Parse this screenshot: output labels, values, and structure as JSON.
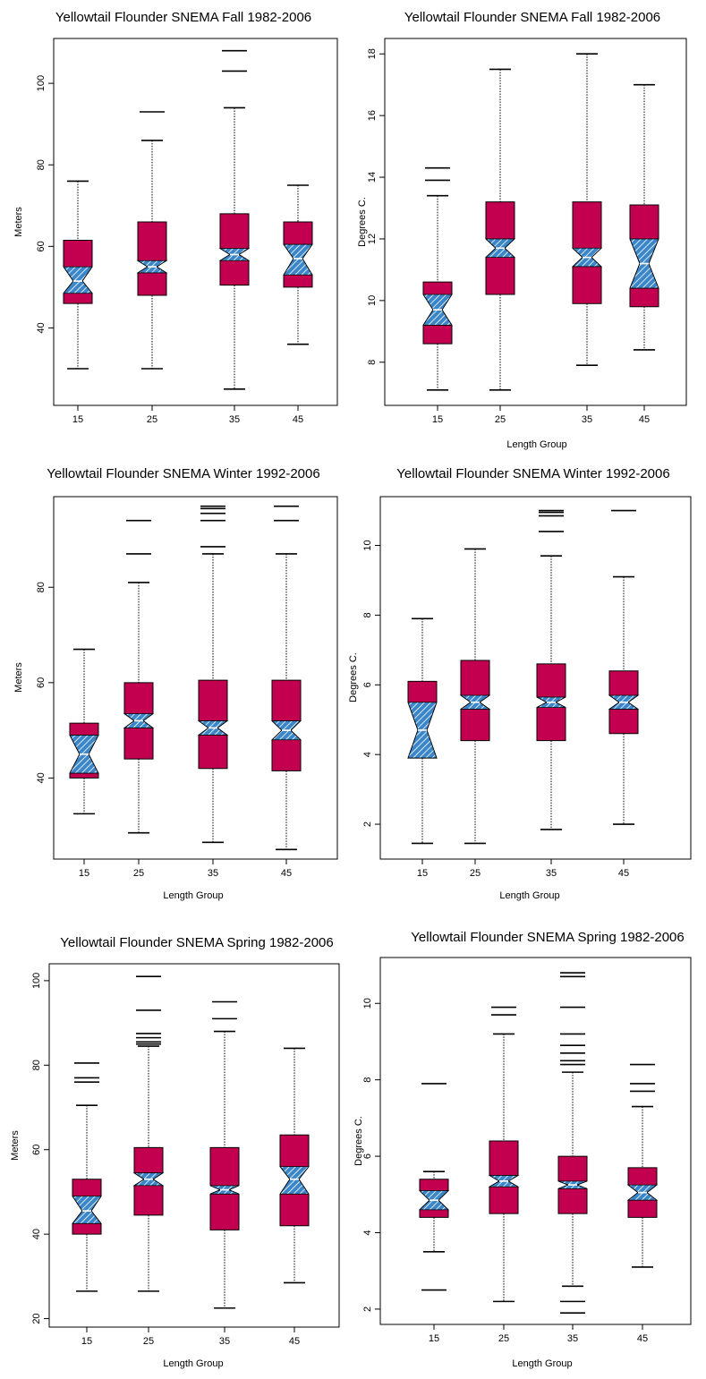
{
  "colors": {
    "box": "#c2004f",
    "notch": "#3a86c8",
    "hatch": "#ffffff",
    "stroke": "#000000"
  },
  "chart_data": [
    {
      "type": "box",
      "title": "Yellowtail Flounder SNEMA Fall 1982-2006",
      "xlabel": "",
      "ylabel": "Meters",
      "categories": [
        "15",
        "25",
        "35",
        "45"
      ],
      "yticks": [
        40,
        60,
        80,
        100
      ],
      "ylim": [
        21,
        111
      ],
      "boxes": [
        {
          "whisker_low": 30,
          "q1": 46,
          "notch_low": 48.5,
          "median": 51.5,
          "notch_high": 55,
          "q3": 61.5,
          "whisker_high": 76,
          "outliers": []
        },
        {
          "whisker_low": 30,
          "q1": 48,
          "notch_low": 53.5,
          "median": 55,
          "notch_high": 56.5,
          "q3": 66,
          "whisker_high": 86,
          "outliers": [
            93
          ]
        },
        {
          "whisker_low": 25,
          "q1": 50.5,
          "notch_low": 56.5,
          "median": 58,
          "notch_high": 59.5,
          "q3": 68,
          "whisker_high": 94,
          "outliers": [
            103,
            108
          ]
        },
        {
          "whisker_low": 36,
          "q1": 50,
          "notch_low": 53,
          "median": 57,
          "notch_high": 60.5,
          "q3": 66,
          "whisker_high": 75,
          "outliers": []
        }
      ]
    },
    {
      "type": "box",
      "title": "Yellowtail Flounder SNEMA Fall 1982-2006",
      "xlabel": "Length Group",
      "ylabel": "Degrees C.",
      "categories": [
        "15",
        "25",
        "35",
        "45"
      ],
      "yticks": [
        8,
        10,
        12,
        14,
        16,
        18
      ],
      "ylim": [
        6.6,
        18.5
      ],
      "boxes": [
        {
          "whisker_low": 7.1,
          "q1": 8.6,
          "notch_low": 9.2,
          "median": 9.7,
          "notch_high": 10.2,
          "q3": 10.6,
          "whisker_high": 13.4,
          "outliers": [
            13.9,
            14.3
          ]
        },
        {
          "whisker_low": 7.1,
          "q1": 10.2,
          "notch_low": 11.4,
          "median": 11.7,
          "notch_high": 12.0,
          "q3": 13.2,
          "whisker_high": 17.5,
          "outliers": []
        },
        {
          "whisker_low": 7.9,
          "q1": 9.9,
          "notch_low": 11.1,
          "median": 11.4,
          "notch_high": 11.7,
          "q3": 13.2,
          "whisker_high": 18.0,
          "outliers": []
        },
        {
          "whisker_low": 8.4,
          "q1": 9.8,
          "notch_low": 10.4,
          "median": 11.2,
          "notch_high": 12.0,
          "q3": 13.1,
          "whisker_high": 17.0,
          "outliers": []
        }
      ]
    },
    {
      "type": "box",
      "title": "Yellowtail Flounder SNEMA Winter 1992-2006",
      "xlabel": "Length Group",
      "ylabel": "Meters",
      "categories": [
        "15",
        "25",
        "35",
        "45"
      ],
      "yticks": [
        40,
        60,
        80
      ],
      "ylim": [
        23,
        99
      ],
      "boxes": [
        {
          "whisker_low": 32.5,
          "q1": 40.0,
          "notch_low": 41.0,
          "median": 45.0,
          "notch_high": 49.0,
          "q3": 51.5,
          "whisker_high": 67.0,
          "outliers": []
        },
        {
          "whisker_low": 28.5,
          "q1": 44.0,
          "notch_low": 50.5,
          "median": 52.0,
          "notch_high": 53.5,
          "q3": 60.0,
          "whisker_high": 81.0,
          "outliers": [
            87,
            94
          ]
        },
        {
          "whisker_low": 26.5,
          "q1": 42.0,
          "notch_low": 49.0,
          "median": 50.5,
          "notch_high": 52.0,
          "q3": 60.5,
          "whisker_high": 87.0,
          "outliers": [
            88.5,
            94,
            95.5,
            96.5,
            97
          ]
        },
        {
          "whisker_low": 25.0,
          "q1": 41.5,
          "notch_low": 48.0,
          "median": 50.0,
          "notch_high": 52.0,
          "q3": 60.5,
          "whisker_high": 87.0,
          "outliers": [
            94,
            97
          ]
        }
      ]
    },
    {
      "type": "box",
      "title": "Yellowtail Flounder SNEMA Winter 1992-2006",
      "xlabel": "Length Group",
      "ylabel": "Degrees C.",
      "categories": [
        "15",
        "25",
        "35",
        "45"
      ],
      "yticks": [
        2,
        4,
        6,
        8,
        10
      ],
      "ylim": [
        1.0,
        11.4
      ],
      "boxes": [
        {
          "whisker_low": 1.45,
          "q1": 3.9,
          "notch_low": 3.9,
          "median": 4.7,
          "notch_high": 5.5,
          "q3": 6.1,
          "whisker_high": 7.9,
          "outliers": []
        },
        {
          "whisker_low": 1.45,
          "q1": 4.4,
          "notch_low": 5.3,
          "median": 5.5,
          "notch_high": 5.7,
          "q3": 6.7,
          "whisker_high": 9.9,
          "outliers": []
        },
        {
          "whisker_low": 1.85,
          "q1": 4.4,
          "notch_low": 5.35,
          "median": 5.5,
          "notch_high": 5.65,
          "q3": 6.6,
          "whisker_high": 9.7,
          "outliers": [
            10.4,
            10.85,
            10.95,
            11.0
          ]
        },
        {
          "whisker_low": 2.0,
          "q1": 4.6,
          "notch_low": 5.3,
          "median": 5.5,
          "notch_high": 5.7,
          "q3": 6.4,
          "whisker_high": 9.1,
          "outliers": [
            11.0
          ]
        }
      ]
    },
    {
      "type": "box",
      "title": "Yellowtail Flounder SNEMA Spring 1982-2006",
      "xlabel": "Length Group",
      "ylabel": "Meters",
      "categories": [
        "15",
        "25",
        "35",
        "45"
      ],
      "yticks": [
        20,
        40,
        60,
        80,
        100
      ],
      "ylim": [
        18,
        104
      ],
      "boxes": [
        {
          "whisker_low": 26.5,
          "q1": 40.0,
          "notch_low": 42.5,
          "median": 45.5,
          "notch_high": 49.0,
          "q3": 53.0,
          "whisker_high": 70.5,
          "outliers": [
            76,
            77,
            80.5
          ]
        },
        {
          "whisker_low": 26.5,
          "q1": 44.5,
          "notch_low": 51.5,
          "median": 53.0,
          "notch_high": 54.5,
          "q3": 60.5,
          "whisker_high": 84.5,
          "outliers": [
            85,
            85.5,
            86.5,
            87.5,
            93,
            101
          ]
        },
        {
          "whisker_low": 22.5,
          "q1": 41.0,
          "notch_low": 49.5,
          "median": 50.5,
          "notch_high": 51.5,
          "q3": 60.5,
          "whisker_high": 88.0,
          "outliers": [
            91,
            95
          ]
        },
        {
          "whisker_low": 28.5,
          "q1": 42.0,
          "notch_low": 49.5,
          "median": 53.0,
          "notch_high": 56.0,
          "q3": 63.5,
          "whisker_high": 84.0,
          "outliers": []
        }
      ]
    },
    {
      "type": "box",
      "title": "Yellowtail Flounder SNEMA Spring 1982-2006",
      "xlabel": "Length Group",
      "ylabel": "Degrees C.",
      "categories": [
        "15",
        "25",
        "35",
        "45"
      ],
      "yticks": [
        2,
        4,
        6,
        8,
        10
      ],
      "ylim": [
        1.6,
        11.2
      ],
      "boxes": [
        {
          "whisker_low": 3.5,
          "q1": 4.4,
          "notch_low": 4.6,
          "median": 4.85,
          "notch_high": 5.1,
          "q3": 5.4,
          "whisker_high": 5.6,
          "outliers": [
            2.5,
            7.9
          ]
        },
        {
          "whisker_low": 2.2,
          "q1": 4.5,
          "notch_low": 5.2,
          "median": 5.35,
          "notch_high": 5.5,
          "q3": 6.4,
          "whisker_high": 9.2,
          "outliers": [
            9.7,
            9.9
          ]
        },
        {
          "whisker_low": 2.6,
          "q1": 4.5,
          "notch_low": 5.15,
          "median": 5.25,
          "notch_high": 5.35,
          "q3": 6.0,
          "whisker_high": 8.2,
          "outliers": [
            1.9,
            2.2,
            8.4,
            8.5,
            8.7,
            8.9,
            9.2,
            9.9,
            10.7,
            10.8
          ]
        },
        {
          "whisker_low": 3.1,
          "q1": 4.4,
          "notch_low": 4.85,
          "median": 5.05,
          "notch_high": 5.25,
          "q3": 5.7,
          "whisker_high": 7.3,
          "outliers": [
            7.7,
            7.9,
            8.4
          ]
        }
      ]
    }
  ]
}
